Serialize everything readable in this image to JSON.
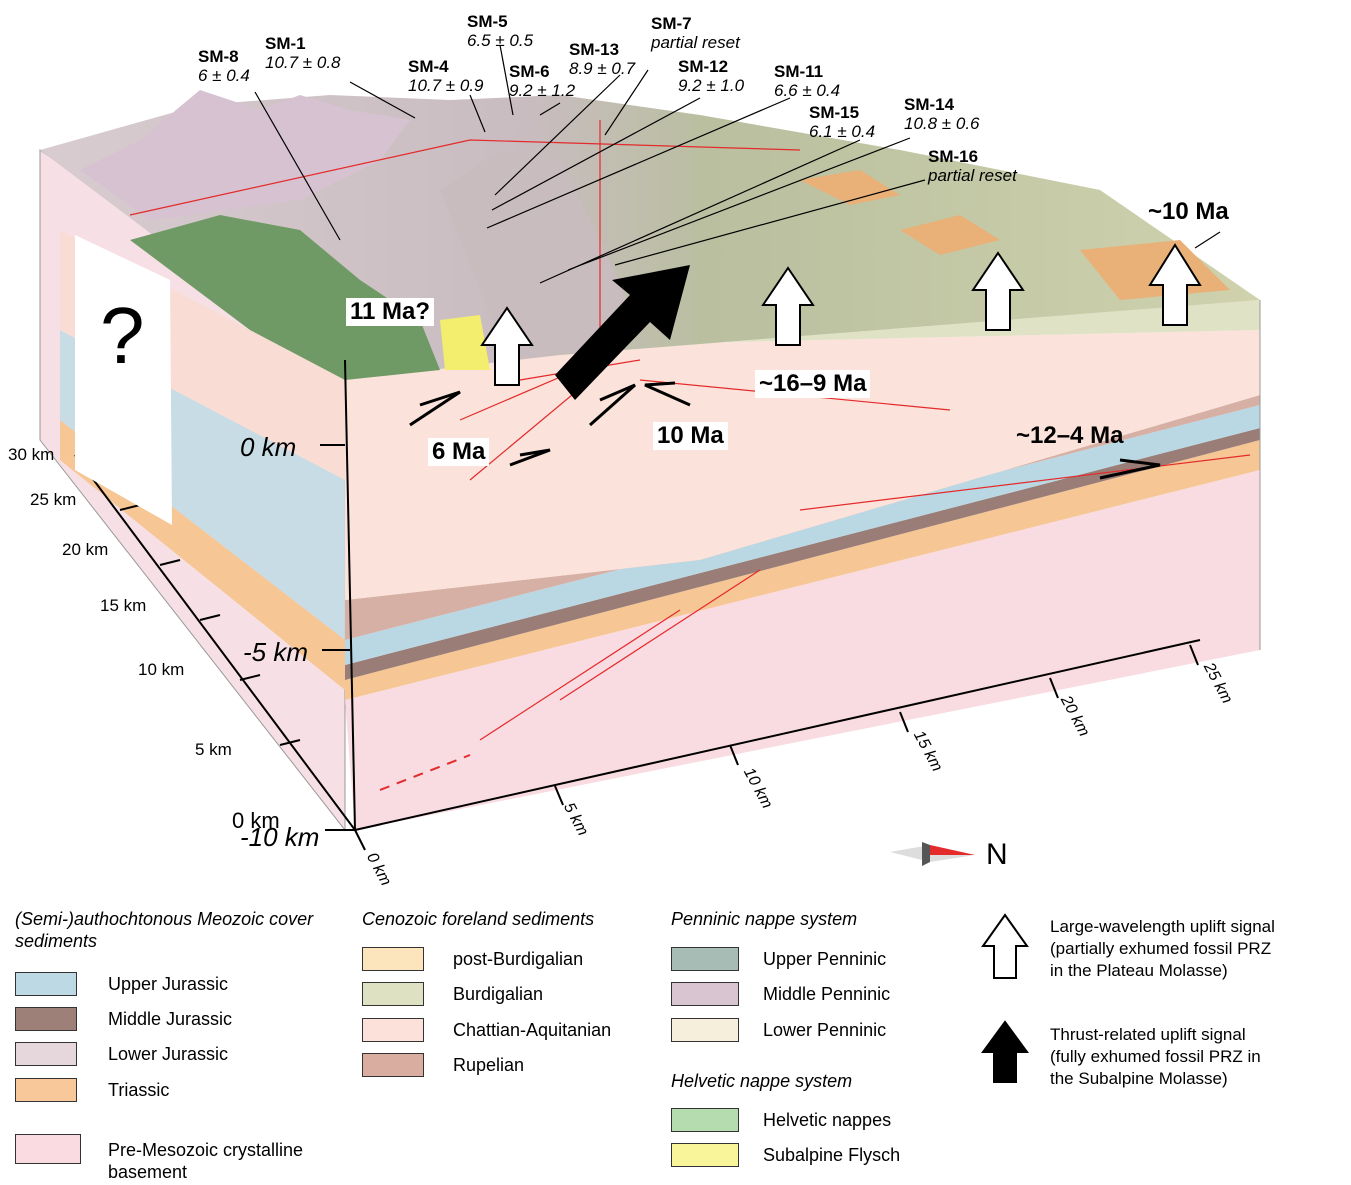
{
  "samples": [
    {
      "id": "SM-8",
      "age": "6 ± 0.4"
    },
    {
      "id": "SM-1",
      "age": "10.7 ± 0.8"
    },
    {
      "id": "SM-4",
      "age": "10.7 ± 0.9"
    },
    {
      "id": "SM-5",
      "age": "6.5 ± 0.5"
    },
    {
      "id": "SM-6",
      "age": "9.2 ± 1.2"
    },
    {
      "id": "SM-13",
      "age": "8.9 ± 0.7"
    },
    {
      "id": "SM-7",
      "age": "partial reset"
    },
    {
      "id": "SM-12",
      "age": "9.2 ± 1.0"
    },
    {
      "id": "SM-11",
      "age": "6.6 ± 0.4"
    },
    {
      "id": "SM-15",
      "age": "6.1 ± 0.4"
    },
    {
      "id": "SM-14",
      "age": "10.8 ± 0.6"
    },
    {
      "id": "SM-16",
      "age": "partial reset"
    }
  ],
  "ages": {
    "a10": "~10 Ma",
    "a11": "11 Ma?",
    "a16_9": "~16–9 Ma",
    "a10b": "10 Ma",
    "a6": "6 Ma",
    "a12_4": "~12–4 Ma"
  },
  "unknown_mark": "?",
  "depth_labels": [
    "0 km",
    "-5 km",
    "-10 km"
  ],
  "height_ticks": [
    "30 km",
    "25 km",
    "20 km",
    "15 km",
    "10 km",
    "5 km",
    "0 km"
  ],
  "bottom_ticks": [
    "0 km",
    "5 km",
    "10 km",
    "15 km",
    "20 km",
    "25 km"
  ],
  "north": "N",
  "legend": {
    "col1": {
      "title": "(Semi-)authochtonous Meozoic cover sediments",
      "items": [
        {
          "label": "Upper Jurassic",
          "color": "#bcd9e4"
        },
        {
          "label": "Middle Jurassic",
          "color": "#9d8078"
        },
        {
          "label": "Lower Jurassic",
          "color": "#e6d7dd"
        },
        {
          "label": "Triassic",
          "color": "#f8c89a"
        },
        {
          "label": "Pre-Mesozoic crystalline basement",
          "color": "#fadbe2"
        }
      ]
    },
    "col2": {
      "title": "Cenozoic foreland sediments",
      "items": [
        {
          "label": "post-Burdigalian",
          "color": "#fce5bc"
        },
        {
          "label": "Burdigalian",
          "color": "#dfe2c2"
        },
        {
          "label": "Chattian-Aquitanian",
          "color": "#fbe1da"
        },
        {
          "label": "Rupelian",
          "color": "#d9ada0"
        }
      ]
    },
    "col3": {
      "title": "Penninic nappe system",
      "items": [
        {
          "label": "Upper Penninic",
          "color": "#a8bcb6"
        },
        {
          "label": "Middle Penninic",
          "color": "#d9c4d2"
        },
        {
          "label": "Lower Penninic",
          "color": "#f5efdb"
        }
      ],
      "title2": "Helvetic nappe system",
      "items2": [
        {
          "label": "Helvetic nappes",
          "color": "#b4dcae"
        },
        {
          "label": "Subalpine Flysch",
          "color": "#f9f59a"
        }
      ]
    },
    "col4": {
      "white_arrow": "Large-wavelength uplift signal (partially exhumed fossil PRZ in the Plateau Molasse)",
      "white_lines": [
        "Large-wavelength uplift signal",
        "(partially exhumed fossil PRZ",
        "in the Plateau Molasse)"
      ],
      "black_arrow": "Thrust-related uplift signal (fully exhumed fossil PRZ in the Subalpine Molasse)",
      "black_lines": [
        "Thrust-related uplift signal",
        "(fully exhumed fossil PRZ in",
        "the Subalpine Molasse)"
      ]
    }
  }
}
